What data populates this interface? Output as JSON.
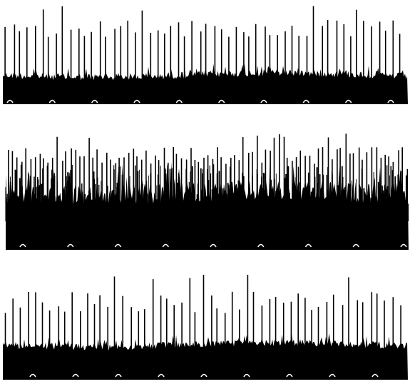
{
  "figure": {
    "ink_color": "#000000",
    "paper_color": "#ffffff",
    "trace_count": 3
  },
  "traces": [
    {
      "id": "top",
      "spike_count": 56,
      "time_marker_count": 10,
      "activity": "sparse"
    },
    {
      "id": "middle",
      "spike_count": 90,
      "time_marker_count": 9,
      "activity": "dense"
    },
    {
      "id": "bottom",
      "spike_count": 55,
      "time_marker_count": 9,
      "activity": "sparse"
    }
  ]
}
